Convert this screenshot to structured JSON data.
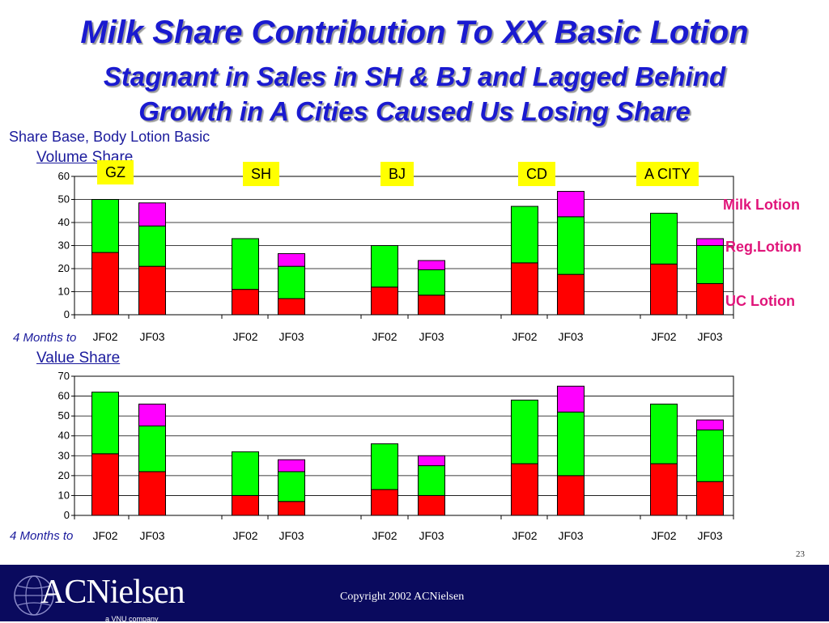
{
  "header": {
    "title_line1": "Milk Share Contribution To XX Basic Lotion",
    "title_line2": "Stagnant in Sales in SH & BJ and Lagged Behind",
    "title_line3": "Growth in A Cities Caused Us Losing Share",
    "subtitle": "Share Base, Body Lotion Basic"
  },
  "cities": [
    "GZ",
    "SH",
    "BJ",
    "CD",
    "A CITY"
  ],
  "legend": [
    {
      "label": "Milk Lotion",
      "color": "#e0157a"
    },
    {
      "label": "Reg.Lotion",
      "color": "#e0157a"
    },
    {
      "label": "UC Lotion",
      "color": "#e0157a"
    }
  ],
  "series_colors": {
    "UC Lotion": "#ff0000",
    "Reg.Lotion": "#00ff00",
    "Milk Lotion": "#ff00ff"
  },
  "chart_data": [
    {
      "type": "bar",
      "stacked": true,
      "title": "Volume Share",
      "xlabel": "4 Months to",
      "categories": [
        "JF02",
        "JF03",
        "JF02",
        "JF03",
        "JF02",
        "JF03",
        "JF02",
        "JF03",
        "JF02",
        "JF03"
      ],
      "groups": [
        "GZ",
        "GZ",
        "SH",
        "SH",
        "BJ",
        "BJ",
        "CD",
        "CD",
        "A CITY",
        "A CITY"
      ],
      "yticks": [
        0,
        10,
        20,
        30,
        40,
        50,
        60
      ],
      "ylim": [
        0,
        60
      ],
      "grid": true,
      "series": [
        {
          "name": "UC Lotion",
          "values": [
            27,
            21,
            11,
            7,
            12,
            8.5,
            22.5,
            17.5,
            22,
            13.5
          ]
        },
        {
          "name": "Reg.Lotion",
          "values": [
            23,
            17.5,
            22,
            14,
            18,
            11,
            24.5,
            25,
            22,
            16.5
          ]
        },
        {
          "name": "Milk Lotion",
          "values": [
            0,
            10,
            0,
            5.5,
            0,
            4,
            0,
            11,
            0,
            3
          ]
        }
      ]
    },
    {
      "type": "bar",
      "stacked": true,
      "title": "Value Share",
      "xlabel": "4 Months to",
      "categories": [
        "JF02",
        "JF03",
        "JF02",
        "JF03",
        "JF02",
        "JF03",
        "JF02",
        "JF03",
        "JF02",
        "JF03"
      ],
      "groups": [
        "GZ",
        "GZ",
        "SH",
        "SH",
        "BJ",
        "BJ",
        "CD",
        "CD",
        "A CITY",
        "A CITY"
      ],
      "yticks": [
        0,
        10,
        20,
        30,
        40,
        50,
        60,
        70
      ],
      "ylim": [
        0,
        70
      ],
      "grid": true,
      "series": [
        {
          "name": "UC Lotion",
          "values": [
            31,
            22,
            10,
            7,
            13,
            10,
            26,
            20,
            26,
            17
          ]
        },
        {
          "name": "Reg.Lotion",
          "values": [
            31,
            23,
            22,
            15,
            23,
            15,
            32,
            32,
            30,
            26
          ]
        },
        {
          "name": "Milk Lotion",
          "values": [
            0,
            11,
            0,
            6,
            0,
            5,
            0,
            13,
            0,
            5
          ]
        }
      ]
    }
  ],
  "footer": {
    "logo_text": "ACNielsen",
    "logo_sub": "a VNU company",
    "copyright": "Copyright 2002 ACNielsen",
    "page_number": "23"
  }
}
